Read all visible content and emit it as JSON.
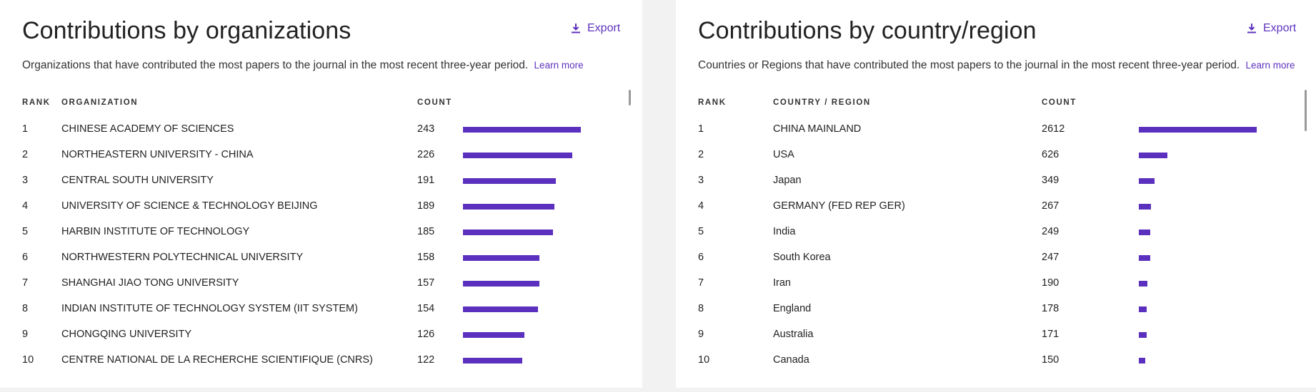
{
  "export_label": "Export",
  "learn_more_label": "Learn more",
  "colors": {
    "accent": "#5e33bf",
    "bar": "#5b30be"
  },
  "chart_data": [
    {
      "type": "bar",
      "title": "Contributions by organizations",
      "subtitle": "Organizations that have contributed the most papers to the journal in the most recent three-year period.",
      "columns": [
        "RANK",
        "ORGANIZATION",
        "COUNT"
      ],
      "rows": [
        {
          "rank": "1",
          "label": "CHINESE ACADEMY OF SCIENCES",
          "count": "243",
          "value": 243
        },
        {
          "rank": "2",
          "label": "NORTHEASTERN UNIVERSITY - CHINA",
          "count": "226",
          "value": 226
        },
        {
          "rank": "3",
          "label": "CENTRAL SOUTH UNIVERSITY",
          "count": "191",
          "value": 191
        },
        {
          "rank": "4",
          "label": "UNIVERSITY OF SCIENCE & TECHNOLOGY BEIJING",
          "count": "189",
          "value": 189
        },
        {
          "rank": "5",
          "label": "HARBIN INSTITUTE OF TECHNOLOGY",
          "count": "185",
          "value": 185
        },
        {
          "rank": "6",
          "label": "NORTHWESTERN POLYTECHNICAL UNIVERSITY",
          "count": "158",
          "value": 158
        },
        {
          "rank": "7",
          "label": "SHANGHAI JIAO TONG UNIVERSITY",
          "count": "157",
          "value": 157
        },
        {
          "rank": "8",
          "label": "INDIAN INSTITUTE OF TECHNOLOGY SYSTEM (IIT SYSTEM)",
          "count": "154",
          "value": 154
        },
        {
          "rank": "9",
          "label": "CHONGQING UNIVERSITY",
          "count": "126",
          "value": 126
        },
        {
          "rank": "10",
          "label": "CENTRE NATIONAL DE LA RECHERCHE SCIENTIFIQUE (CNRS)",
          "count": "122",
          "value": 122
        }
      ]
    },
    {
      "type": "bar",
      "title": "Contributions by country/region",
      "subtitle": "Countries or Regions that have contributed the most papers to the journal in the most recent three-year period.",
      "columns": [
        "RANK",
        "COUNTRY / REGION",
        "COUNT"
      ],
      "rows": [
        {
          "rank": "1",
          "label": "CHINA MAINLAND",
          "count": "2612",
          "value": 2612
        },
        {
          "rank": "2",
          "label": "USA",
          "count": "626",
          "value": 626
        },
        {
          "rank": "3",
          "label": "Japan",
          "count": "349",
          "value": 349
        },
        {
          "rank": "4",
          "label": "GERMANY (FED REP GER)",
          "count": "267",
          "value": 267
        },
        {
          "rank": "5",
          "label": "India",
          "count": "249",
          "value": 249
        },
        {
          "rank": "6",
          "label": "South Korea",
          "count": "247",
          "value": 247
        },
        {
          "rank": "7",
          "label": "Iran",
          "count": "190",
          "value": 190
        },
        {
          "rank": "8",
          "label": "England",
          "count": "178",
          "value": 178
        },
        {
          "rank": "9",
          "label": "Australia",
          "count": "171",
          "value": 171
        },
        {
          "rank": "10",
          "label": "Canada",
          "count": "150",
          "value": 150
        }
      ]
    }
  ]
}
